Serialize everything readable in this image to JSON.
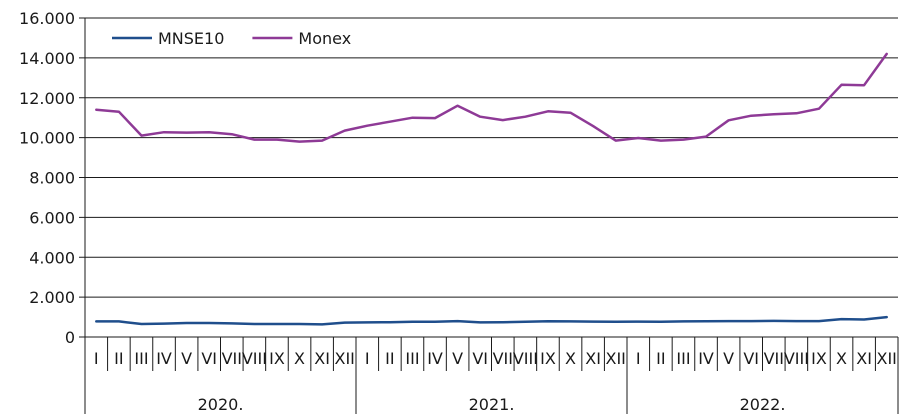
{
  "chart_data": {
    "type": "line",
    "title": "",
    "xlabel": "",
    "ylabel": "",
    "ylim": [
      0,
      16000
    ],
    "y_ticks": [
      {
        "value": 0,
        "label": "0"
      },
      {
        "value": 2000,
        "label": "2.000"
      },
      {
        "value": 4000,
        "label": "4.000"
      },
      {
        "value": 6000,
        "label": "6.000"
      },
      {
        "value": 8000,
        "label": "8.000"
      },
      {
        "value": 10000,
        "label": "10.000"
      },
      {
        "value": 12000,
        "label": "12.000"
      },
      {
        "value": 14000,
        "label": "14.000"
      },
      {
        "value": 16000,
        "label": "16.000"
      }
    ],
    "grid": true,
    "legend_position": "top-left",
    "month_labels": [
      "I",
      "II",
      "III",
      "IV",
      "V",
      "VI",
      "VII",
      "VIII",
      "IX",
      "X",
      "XI",
      "XII",
      "I",
      "II",
      "III",
      "IV",
      "V",
      "VI",
      "VII",
      "VIII",
      "IX",
      "X",
      "XI",
      "XII",
      "I",
      "II",
      "III",
      "IV",
      "V",
      "VI",
      "VII",
      "VIII",
      "IX",
      "X",
      "XI",
      "XII"
    ],
    "years": [
      "2020.",
      "2021.",
      "2022."
    ],
    "series": [
      {
        "name": "MNSE10",
        "color": "#1f4e8c",
        "values": [
          780,
          780,
          650,
          670,
          700,
          700,
          680,
          650,
          650,
          650,
          630,
          720,
          730,
          740,
          760,
          760,
          800,
          730,
          740,
          760,
          790,
          780,
          770,
          760,
          770,
          760,
          780,
          790,
          800,
          800,
          810,
          800,
          800,
          900,
          880,
          1000
        ]
      },
      {
        "name": "Monex",
        "color": "#8e3a96",
        "values": [
          11400,
          11300,
          10100,
          10270,
          10250,
          10270,
          10170,
          9900,
          9900,
          9800,
          9850,
          10350,
          10600,
          10800,
          11000,
          10980,
          11600,
          11050,
          10880,
          11050,
          11320,
          11250,
          10580,
          9850,
          9980,
          9850,
          9900,
          10050,
          10870,
          11100,
          11170,
          11220,
          11450,
          12650,
          12630,
          14200
        ]
      }
    ]
  }
}
